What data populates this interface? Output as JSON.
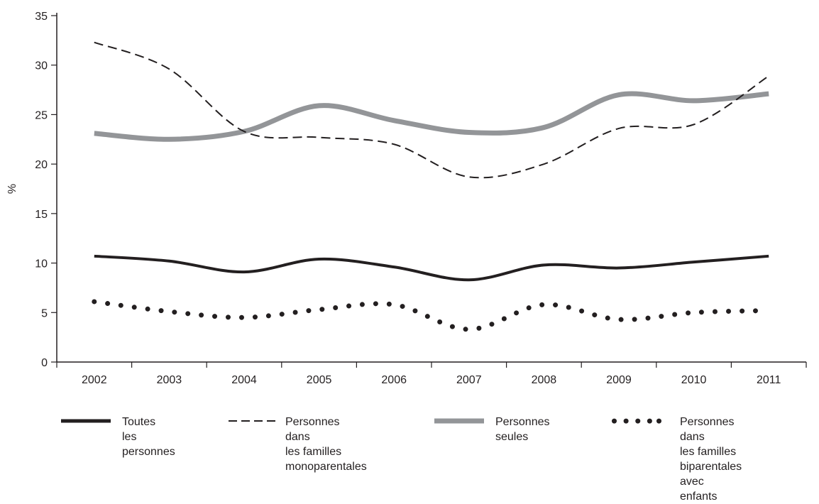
{
  "chart_data": {
    "type": "line",
    "ylabel": "%",
    "xlabel": "",
    "ylim": [
      0,
      35
    ],
    "yticks": [
      0,
      5,
      10,
      15,
      20,
      25,
      30,
      35
    ],
    "x": [
      "2002",
      "2003",
      "2004",
      "2005",
      "2006",
      "2007",
      "2008",
      "2009",
      "2010",
      "2011"
    ],
    "series": [
      {
        "name": "Toutes les personnes",
        "label_lines": "Toutes\nles personnes",
        "style": "solid-thick",
        "color": "#231f20",
        "values": [
          10.7,
          10.2,
          9.1,
          10.4,
          9.6,
          8.3,
          9.8,
          9.5,
          10.1,
          10.7
        ]
      },
      {
        "name": "Personnes dans les familles monoparentales",
        "label_lines": "Personnes dans\nles familles\nmonoparentales",
        "style": "dashed",
        "color": "#231f20",
        "values": [
          32.3,
          29.6,
          23.3,
          22.7,
          22.0,
          18.7,
          20.0,
          23.6,
          24.0,
          28.9
        ]
      },
      {
        "name": "Personnes seules",
        "label_lines": "Personnes\nseules",
        "style": "solid-gray",
        "color": "#939598",
        "values": [
          23.1,
          22.5,
          23.3,
          25.9,
          24.4,
          23.2,
          23.7,
          27.0,
          26.4,
          27.1
        ]
      },
      {
        "name": "Personnes dans les familles biparentales avec enfants",
        "label_lines": "Personnes dans\nles familles biparentales\navec enfants",
        "style": "dotted",
        "color": "#231f20",
        "values": [
          6.1,
          5.1,
          4.5,
          5.3,
          5.8,
          3.3,
          5.8,
          4.3,
          5.0,
          5.2
        ]
      }
    ],
    "legend_position": "bottom",
    "grid": false
  }
}
